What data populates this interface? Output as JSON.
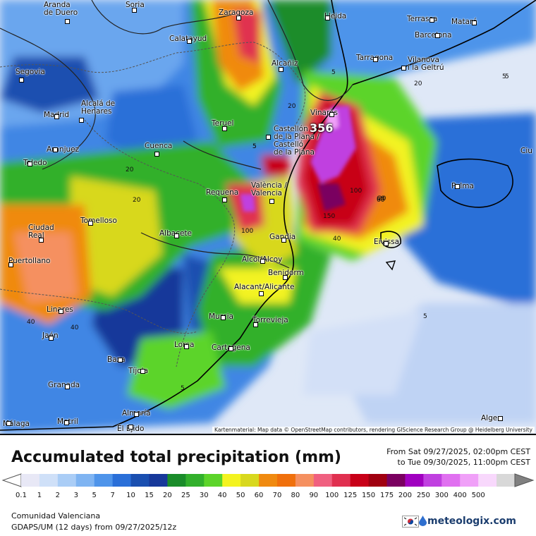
{
  "title": "Accumulated total precipitation (mm)",
  "period": {
    "from": "From Sat 09/27/2025, 02:00pm CEST",
    "to": "to Tue 09/30/2025, 11:00pm CEST"
  },
  "legend": {
    "ticks": [
      "0.1",
      "1",
      "2",
      "3",
      "5",
      "7",
      "10",
      "15",
      "20",
      "25",
      "30",
      "40",
      "50",
      "60",
      "70",
      "80",
      "90",
      "100",
      "125",
      "150",
      "175",
      "200",
      "250",
      "300",
      "400",
      "500"
    ],
    "colors": [
      "#e8e8f6",
      "#cfe0f8",
      "#aacdf6",
      "#7fb4f2",
      "#4e94ea",
      "#2a6fd8",
      "#1a4fb0",
      "#17389a",
      "#1a8c2a",
      "#32b02c",
      "#5cd42a",
      "#f3f320",
      "#d8d81e",
      "#f08a10",
      "#f0700c",
      "#f59060",
      "#f06080",
      "#e03050",
      "#c80018",
      "#a00010",
      "#7a0060",
      "#a000c0",
      "#c040e0",
      "#e070f0",
      "#f0a0f8",
      "#f8d8fc",
      "#d8d8d8"
    ]
  },
  "map": {
    "cities": [
      {
        "name": "Aranda\nde Duero"
      },
      {
        "name": "Soria"
      },
      {
        "name": "Zaragoza"
      },
      {
        "name": "Lleida"
      },
      {
        "name": "Terrassa"
      },
      {
        "name": "Mataró"
      },
      {
        "name": "Barcelona"
      },
      {
        "name": "Calatayud"
      },
      {
        "name": "Segovia"
      },
      {
        "name": "Alcañiz"
      },
      {
        "name": "Tarragona"
      },
      {
        "name": "Vilanova\ni la Geltrú"
      },
      {
        "name": "Alcalá de\nHenares"
      },
      {
        "name": "Madrid"
      },
      {
        "name": "Vinaròs"
      },
      {
        "name": "Teruel"
      },
      {
        "name": "Castellón\nde la Plana /\nCastelló\nde la Plana"
      },
      {
        "name": "Aranjuez"
      },
      {
        "name": "Cuenca"
      },
      {
        "name": "Toledo"
      },
      {
        "name": "Ciu"
      },
      {
        "name": "València /\nValencia"
      },
      {
        "name": "Requena"
      },
      {
        "name": "Palma"
      },
      {
        "name": "Ciudad\nReal"
      },
      {
        "name": "Tomelloso"
      },
      {
        "name": "Albacete"
      },
      {
        "name": "Gandia"
      },
      {
        "name": "Eivissa"
      },
      {
        "name": "Puertollano"
      },
      {
        "name": "Alcol/Alcoy"
      },
      {
        "name": "Benidorm"
      },
      {
        "name": "Alacant/Alicante"
      },
      {
        "name": "Linares"
      },
      {
        "name": "Murcia"
      },
      {
        "name": "Torrevieja"
      },
      {
        "name": "Jaén"
      },
      {
        "name": "Lorca"
      },
      {
        "name": "Cartagena"
      },
      {
        "name": "Baza"
      },
      {
        "name": "Tíjola"
      },
      {
        "name": "Granada"
      },
      {
        "name": "Almería"
      },
      {
        "name": "Motril"
      },
      {
        "name": "El Ejido"
      },
      {
        "name": "Málaga"
      },
      {
        "name": "Alger"
      }
    ],
    "contour_labels": [
      "20",
      "5",
      "20",
      "20",
      "5",
      "20",
      "20",
      "100",
      "60",
      "40",
      "100",
      "150",
      "40",
      "40",
      "60",
      "5",
      "5",
      "5",
      "5",
      "5"
    ],
    "max_value": "356",
    "attribution": "Kartenmaterial: Map data © OpenStreetMap contributors, rendering GIScience Research Group @ Heidelberg University"
  },
  "footer": {
    "region": "Comunidad Valenciana",
    "model": "GDAPS/UM (12 days) from 09/27/2025/12z",
    "brand": "meteologix.com"
  }
}
